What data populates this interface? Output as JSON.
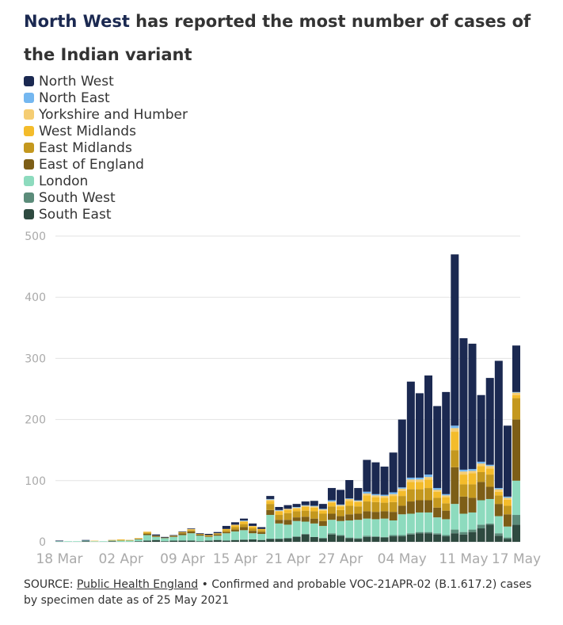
{
  "chart_data": {
    "type": "stacked-bar",
    "title_highlight": "North West",
    "title": "has reported the most number of cases of the Indian variant",
    "source_label": "SOURCE:",
    "source_link": "Public Health England",
    "source_note": "• Confirmed and probable VOC-21APR-02 (B.1.617.2) cases by specimen date as of 25 May 2021",
    "categories": [
      "18 Mar",
      null,
      null,
      null,
      null,
      null,
      null,
      "02 Apr",
      null,
      null,
      null,
      null,
      null,
      null,
      "09 Apr",
      null,
      null,
      null,
      null,
      null,
      "15 Apr",
      null,
      null,
      null,
      null,
      null,
      "21 Apr",
      null,
      null,
      null,
      null,
      null,
      "27 Apr",
      null,
      null,
      null,
      null,
      null,
      null,
      "04 May",
      null,
      null,
      null,
      null,
      null,
      null,
      "11 May",
      null,
      null,
      null,
      null,
      null,
      "17 May"
    ],
    "ylim": [
      0,
      500
    ],
    "yticks": [
      0,
      100,
      200,
      300,
      400,
      500
    ],
    "grid": true,
    "series": [
      {
        "name": "North West",
        "color": "#1b2951",
        "values": [
          1,
          0,
          0,
          1,
          0,
          0,
          0,
          0,
          0,
          0,
          0,
          2,
          1,
          1,
          1,
          1,
          1,
          2,
          2,
          5,
          4,
          3,
          4,
          3,
          5,
          5,
          6,
          5,
          6,
          8,
          8,
          20,
          24,
          30,
          20,
          52,
          52,
          46,
          65,
          111,
          157,
          138,
          162,
          134,
          167,
          280,
          215,
          205,
          109,
          142,
          208,
          116,
          76
        ]
      },
      {
        "name": "North East",
        "color": "#74b7f0",
        "values": [
          0,
          0,
          0,
          0,
          0,
          0,
          0,
          0,
          0,
          0,
          0,
          0,
          0,
          0,
          0,
          0,
          0,
          0,
          0,
          0,
          0,
          1,
          0,
          0,
          1,
          1,
          0,
          1,
          1,
          1,
          1,
          2,
          1,
          1,
          1,
          3,
          2,
          2,
          3,
          2,
          3,
          3,
          4,
          3,
          2,
          4,
          3,
          3,
          3,
          2,
          2,
          2,
          1
        ]
      },
      {
        "name": "Yorkshire and Humber",
        "color": "#f5cd73",
        "values": [
          0,
          0,
          0,
          0,
          1,
          0,
          0,
          0,
          0,
          0,
          1,
          0,
          0,
          0,
          0,
          1,
          0,
          0,
          0,
          0,
          1,
          1,
          1,
          0,
          2,
          1,
          2,
          2,
          2,
          2,
          2,
          2,
          2,
          3,
          2,
          3,
          3,
          3,
          3,
          4,
          4,
          4,
          4,
          3,
          3,
          6,
          5,
          4,
          4,
          4,
          4,
          3,
          4
        ]
      },
      {
        "name": "West Midlands",
        "color": "#f4bc2b",
        "values": [
          0,
          0,
          0,
          0,
          0,
          0,
          0,
          1,
          0,
          1,
          1,
          0,
          0,
          0,
          1,
          1,
          0,
          1,
          1,
          2,
          3,
          4,
          3,
          2,
          5,
          6,
          5,
          4,
          6,
          6,
          5,
          6,
          6,
          8,
          7,
          10,
          8,
          8,
          10,
          8,
          12,
          12,
          14,
          10,
          10,
          30,
          16,
          18,
          10,
          10,
          6,
          10,
          5
        ]
      },
      {
        "name": "East Midlands",
        "color": "#c4981e",
        "values": [
          0,
          0,
          0,
          0,
          0,
          0,
          1,
          1,
          1,
          0,
          2,
          1,
          0,
          1,
          1,
          2,
          1,
          1,
          1,
          3,
          4,
          5,
          4,
          3,
          10,
          8,
          11,
          10,
          10,
          12,
          12,
          12,
          10,
          14,
          12,
          16,
          16,
          14,
          16,
          16,
          20,
          18,
          20,
          16,
          12,
          28,
          20,
          22,
          16,
          20,
          14,
          14,
          35
        ]
      },
      {
        "name": "East of England",
        "color": "#7d5e17",
        "values": [
          0,
          0,
          0,
          0,
          0,
          0,
          0,
          0,
          0,
          1,
          2,
          1,
          1,
          1,
          3,
          3,
          2,
          1,
          2,
          2,
          3,
          5,
          4,
          3,
          8,
          6,
          8,
          6,
          8,
          8,
          8,
          10,
          8,
          10,
          10,
          12,
          12,
          12,
          14,
          14,
          20,
          20,
          20,
          16,
          14,
          60,
          28,
          24,
          30,
          20,
          20,
          20,
          100
        ]
      },
      {
        "name": "London",
        "color": "#8ddbbe",
        "values": [
          1,
          1,
          1,
          1,
          1,
          1,
          1,
          2,
          2,
          3,
          9,
          5,
          5,
          6,
          9,
          12,
          9,
          6,
          7,
          12,
          14,
          15,
          10,
          10,
          39,
          25,
          22,
          25,
          20,
          22,
          20,
          22,
          23,
          28,
          30,
          28,
          28,
          30,
          24,
          34,
          32,
          32,
          32,
          26,
          26,
          42,
          30,
          28,
          40,
          40,
          28,
          18,
          56
        ]
      },
      {
        "name": "South West",
        "color": "#5b8c7a",
        "values": [
          0,
          0,
          0,
          0,
          0,
          0,
          0,
          0,
          0,
          0,
          0,
          0,
          0,
          0,
          0,
          0,
          0,
          0,
          0,
          0,
          0,
          1,
          0,
          0,
          0,
          0,
          0,
          1,
          1,
          0,
          0,
          2,
          1,
          1,
          1,
          2,
          1,
          1,
          2,
          2,
          2,
          2,
          2,
          2,
          2,
          6,
          4,
          4,
          6,
          2,
          4,
          2,
          16
        ]
      },
      {
        "name": "South East",
        "color": "#2e4a40",
        "values": [
          0,
          0,
          0,
          1,
          0,
          0,
          1,
          0,
          0,
          1,
          2,
          3,
          1,
          2,
          2,
          2,
          1,
          2,
          3,
          2,
          3,
          3,
          4,
          3,
          5,
          5,
          6,
          8,
          12,
          8,
          6,
          12,
          10,
          6,
          5,
          8,
          8,
          7,
          9,
          9,
          12,
          14,
          14,
          12,
          9,
          14,
          12,
          16,
          22,
          28,
          10,
          5,
          28
        ]
      }
    ]
  }
}
